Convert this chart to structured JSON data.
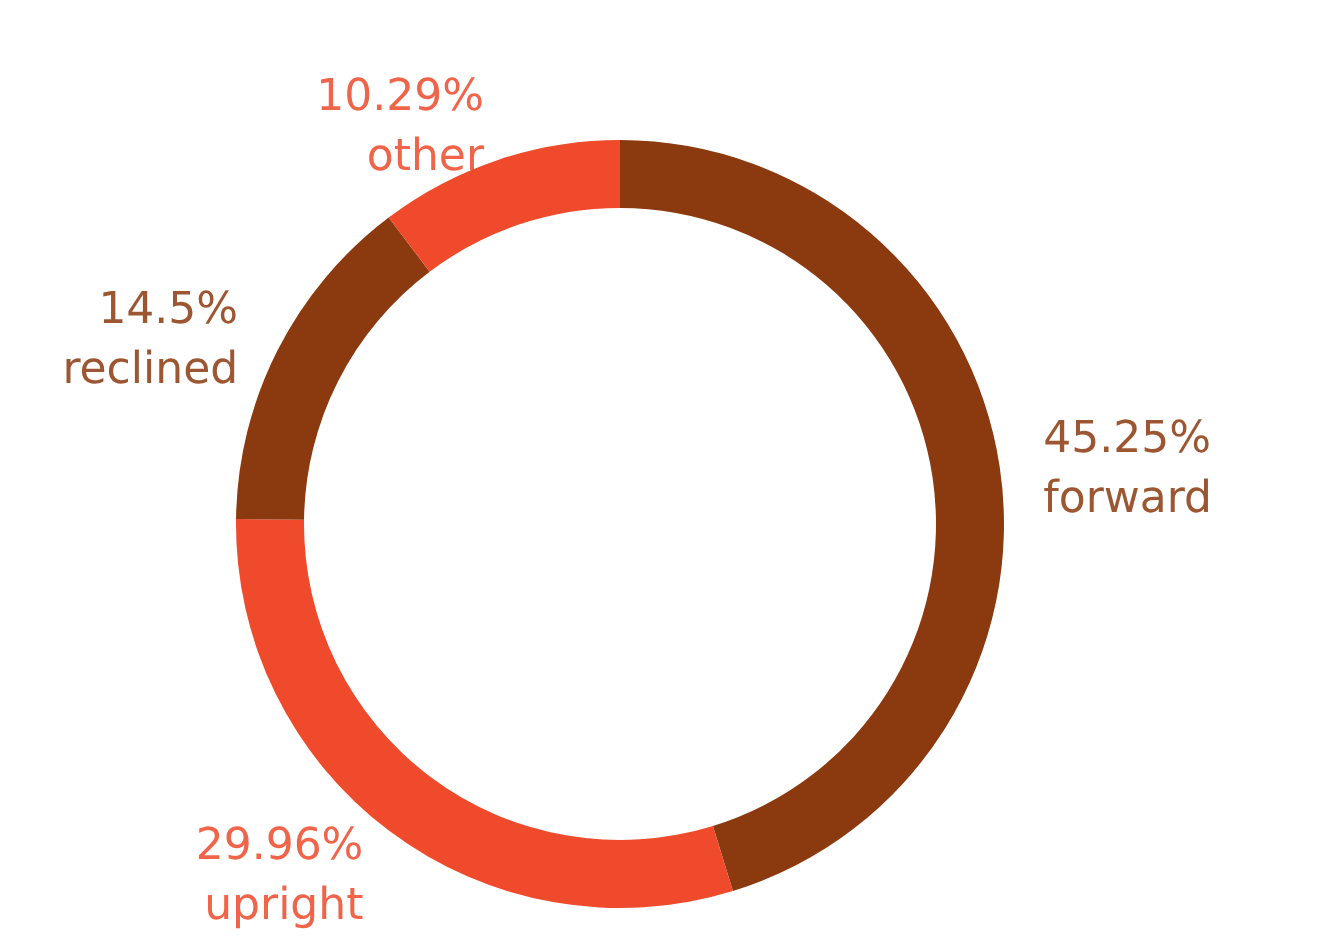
{
  "chart_data": {
    "type": "donut",
    "categories": [
      "forward",
      "upright",
      "reclined",
      "other"
    ],
    "values": [
      45.25,
      29.96,
      14.5,
      10.29
    ],
    "colors": [
      "#8b3a0f",
      "#ee4a2b",
      "#8b3a0f",
      "#ee4a2b"
    ],
    "value_labels": [
      "45.25%",
      "29.96%",
      "14.5%",
      "10.29%"
    ]
  }
}
